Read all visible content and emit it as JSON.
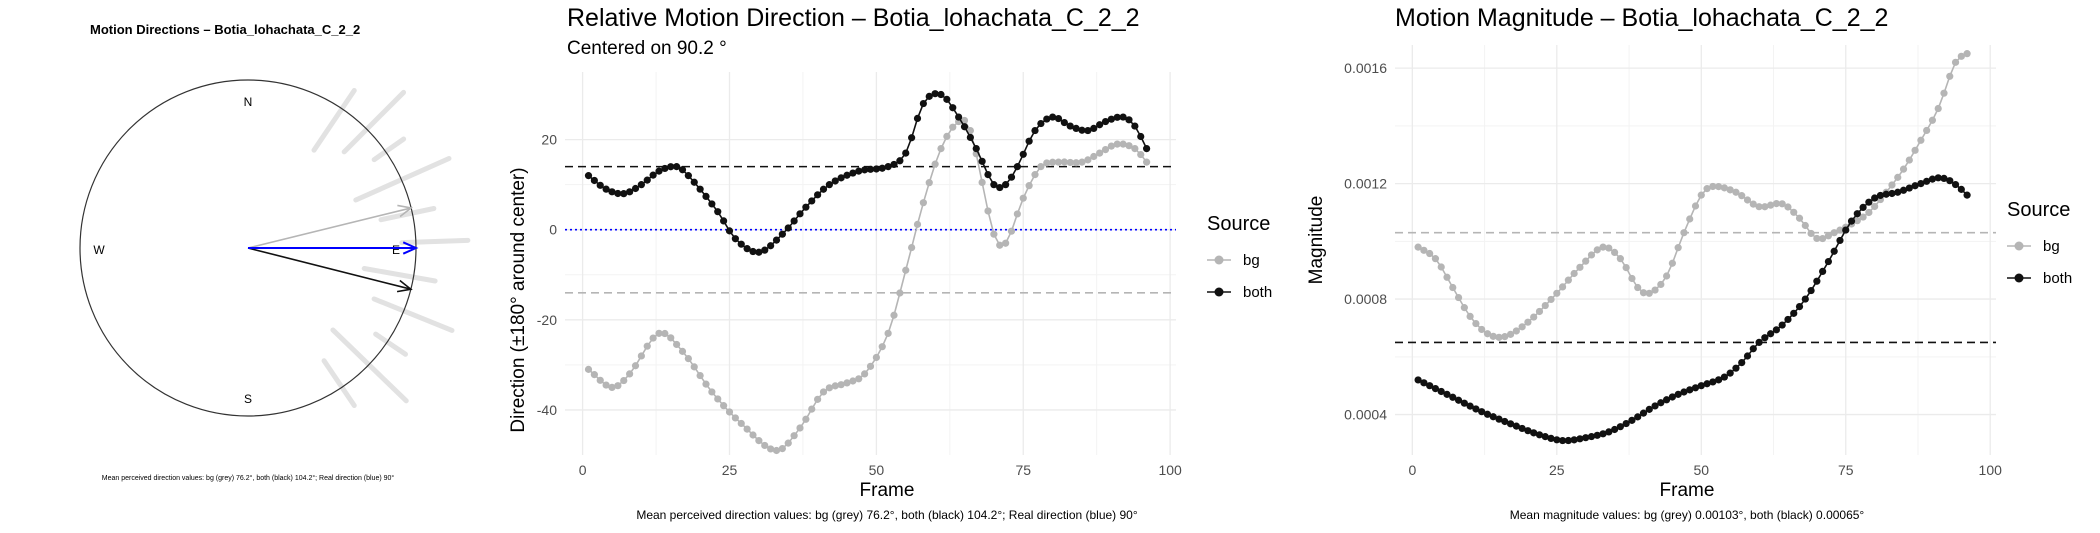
{
  "compass": {
    "title": "Motion Directions – Botia_lohachata_C_2_2",
    "labels": {
      "N": "N",
      "S": "S",
      "E": "E",
      "W": "W"
    },
    "caption": "Mean perceived direction values: bg (grey) 76.2°, both (black) 104.2°; Real direction (blue) 90°"
  },
  "direction": {
    "title": "Relative Motion Direction – Botia_lohachata_C_2_2",
    "subtitle": "Centered on  90.2 °",
    "caption": "Mean perceived direction values: bg (grey) 76.2°, both (black) 104.2°; Real direction (blue) 90°",
    "legend_title": "Source",
    "legend": [
      "bg",
      "both"
    ]
  },
  "magnitude": {
    "title": "Motion Magnitude – Botia_lohachata_C_2_2",
    "caption": "Mean magnitude values: bg (grey) 0.00103°, both (black) 0.00065°",
    "legend_title": "Source",
    "legend": [
      "bg",
      "both"
    ]
  },
  "colors": {
    "bg": "#b5b5b5",
    "both": "#111111",
    "real": "#0000ff",
    "grid": "#ebebeb",
    "rays": "#e2e2e2"
  },
  "chart_data": [
    {
      "type": "scatter",
      "title": "Motion Directions – Botia_lohachata_C_2_2",
      "mode": "compass",
      "arrows": [
        {
          "name": "bg",
          "angle_deg": 76.2,
          "color": "#b5b5b5"
        },
        {
          "name": "both",
          "angle_deg": 104.2,
          "color": "#111111"
        },
        {
          "name": "real",
          "angle_deg": 90,
          "color": "#0000ff"
        }
      ],
      "ray_angles_deg": [
        34,
        45,
        55,
        66,
        78,
        88,
        100,
        112,
        124,
        134,
        146
      ]
    },
    {
      "type": "line",
      "title": "Relative Motion Direction – Botia_lohachata_C_2_2",
      "xlabel": "Frame",
      "ylabel": "Direction (±180° around center)",
      "xlim": [
        -3,
        101
      ],
      "ylim": [
        -50,
        35
      ],
      "xticks": [
        0,
        25,
        50,
        75,
        100
      ],
      "yticks": [
        20,
        0,
        -20,
        -40
      ],
      "hlines": [
        {
          "y": 14,
          "color": "#111111",
          "style": "dashed"
        },
        {
          "y": -14,
          "color": "#b5b5b5",
          "style": "dashed"
        },
        {
          "y": 0,
          "color": "#0000ff",
          "style": "dotted"
        }
      ],
      "series": [
        {
          "name": "bg",
          "x_start": 1,
          "x_end": 96,
          "knots": [
            [
              1,
              -31
            ],
            [
              5,
              -35
            ],
            [
              8,
              -32
            ],
            [
              13,
              -23
            ],
            [
              17,
              -27
            ],
            [
              22,
              -36
            ],
            [
              27,
              -43
            ],
            [
              33,
              -49
            ],
            [
              37,
              -44
            ],
            [
              41,
              -36
            ],
            [
              45,
              -34
            ],
            [
              48,
              -32
            ],
            [
              52,
              -23
            ],
            [
              55,
              -9
            ],
            [
              58,
              6
            ],
            [
              61,
              18
            ],
            [
              64,
              24
            ],
            [
              66,
              22
            ],
            [
              70,
              -1
            ],
            [
              72,
              -3
            ],
            [
              75,
              7
            ],
            [
              78,
              14
            ],
            [
              81,
              15
            ],
            [
              85,
              15
            ],
            [
              88,
              17
            ],
            [
              91,
              19
            ],
            [
              94,
              18
            ],
            [
              96,
              15
            ]
          ]
        },
        {
          "name": "both",
          "x_start": 1,
          "x_end": 96,
          "knots": [
            [
              1,
              12
            ],
            [
              4,
              9
            ],
            [
              7,
              8
            ],
            [
              10,
              10
            ],
            [
              13,
              13
            ],
            [
              16,
              14
            ],
            [
              18,
              12
            ],
            [
              23,
              4
            ],
            [
              26,
              -2
            ],
            [
              30,
              -5
            ],
            [
              34,
              -1
            ],
            [
              38,
              5
            ],
            [
              42,
              10
            ],
            [
              47,
              13
            ],
            [
              52,
              14
            ],
            [
              55,
              17
            ],
            [
              58,
              28
            ],
            [
              61,
              30
            ],
            [
              64,
              25
            ],
            [
              67,
              18
            ],
            [
              70,
              10
            ],
            [
              72,
              10
            ],
            [
              74,
              14
            ],
            [
              77,
              22
            ],
            [
              80,
              25
            ],
            [
              83,
              23
            ],
            [
              86,
              22
            ],
            [
              89,
              24
            ],
            [
              92,
              25
            ],
            [
              94,
              23
            ],
            [
              96,
              18
            ]
          ]
        }
      ]
    },
    {
      "type": "line",
      "title": "Motion Magnitude – Botia_lohachata_C_2_2",
      "xlabel": "Frame",
      "ylabel": "Magnitude",
      "xlim": [
        -3,
        101
      ],
      "ylim": [
        0.00026,
        0.00168
      ],
      "xticks": [
        0,
        25,
        50,
        75,
        100
      ],
      "yticks": [
        0.0016,
        0.0012,
        0.0008,
        0.0004
      ],
      "ytick_labels": [
        "0.0016",
        "0.0012",
        "0.0008",
        "0.0004"
      ],
      "hlines": [
        {
          "y": 0.00103,
          "color": "#b5b5b5",
          "style": "dashed"
        },
        {
          "y": 0.00065,
          "color": "#111111",
          "style": "dashed"
        }
      ],
      "series": [
        {
          "name": "bg",
          "x_start": 1,
          "x_end": 96,
          "knots": [
            [
              1,
              0.00098
            ],
            [
              4,
              0.00094
            ],
            [
              7,
              0.00084
            ],
            [
              10,
              0.00074
            ],
            [
              13,
              0.00068
            ],
            [
              16,
              0.00067
            ],
            [
              20,
              0.00072
            ],
            [
              25,
              0.00082
            ],
            [
              29,
              0.00091
            ],
            [
              33,
              0.00098
            ],
            [
              36,
              0.00094
            ],
            [
              39,
              0.00084
            ],
            [
              41,
              0.00082
            ],
            [
              44,
              0.00088
            ],
            [
              47,
              0.00103
            ],
            [
              50,
              0.00116
            ],
            [
              52,
              0.00119
            ],
            [
              56,
              0.00117
            ],
            [
              60,
              0.00112
            ],
            [
              64,
              0.00113
            ],
            [
              67,
              0.00108
            ],
            [
              70,
              0.00101
            ],
            [
              73,
              0.00103
            ],
            [
              76,
              0.00106
            ],
            [
              79,
              0.0011
            ],
            [
              82,
              0.00117
            ],
            [
              85,
              0.00125
            ],
            [
              88,
              0.00135
            ],
            [
              91,
              0.00146
            ],
            [
              94,
              0.00162
            ],
            [
              96,
              0.00165
            ]
          ]
        },
        {
          "name": "both",
          "x_start": 1,
          "x_end": 96,
          "knots": [
            [
              1,
              0.00052
            ],
            [
              6,
              0.00047
            ],
            [
              12,
              0.00041
            ],
            [
              18,
              0.00036
            ],
            [
              22,
              0.00033
            ],
            [
              26,
              0.00031
            ],
            [
              30,
              0.00032
            ],
            [
              34,
              0.00034
            ],
            [
              38,
              0.00038
            ],
            [
              42,
              0.00043
            ],
            [
              46,
              0.00047
            ],
            [
              50,
              0.0005
            ],
            [
              54,
              0.00053
            ],
            [
              57,
              0.00058
            ],
            [
              60,
              0.00065
            ],
            [
              64,
              0.00071
            ],
            [
              68,
              0.0008
            ],
            [
              72,
              0.00093
            ],
            [
              76,
              0.00107
            ],
            [
              80,
              0.00115
            ],
            [
              84,
              0.00117
            ],
            [
              88,
              0.0012
            ],
            [
              91,
              0.00122
            ],
            [
              93,
              0.00121
            ],
            [
              95,
              0.00118
            ],
            [
              96,
              0.00116
            ]
          ]
        }
      ]
    }
  ]
}
